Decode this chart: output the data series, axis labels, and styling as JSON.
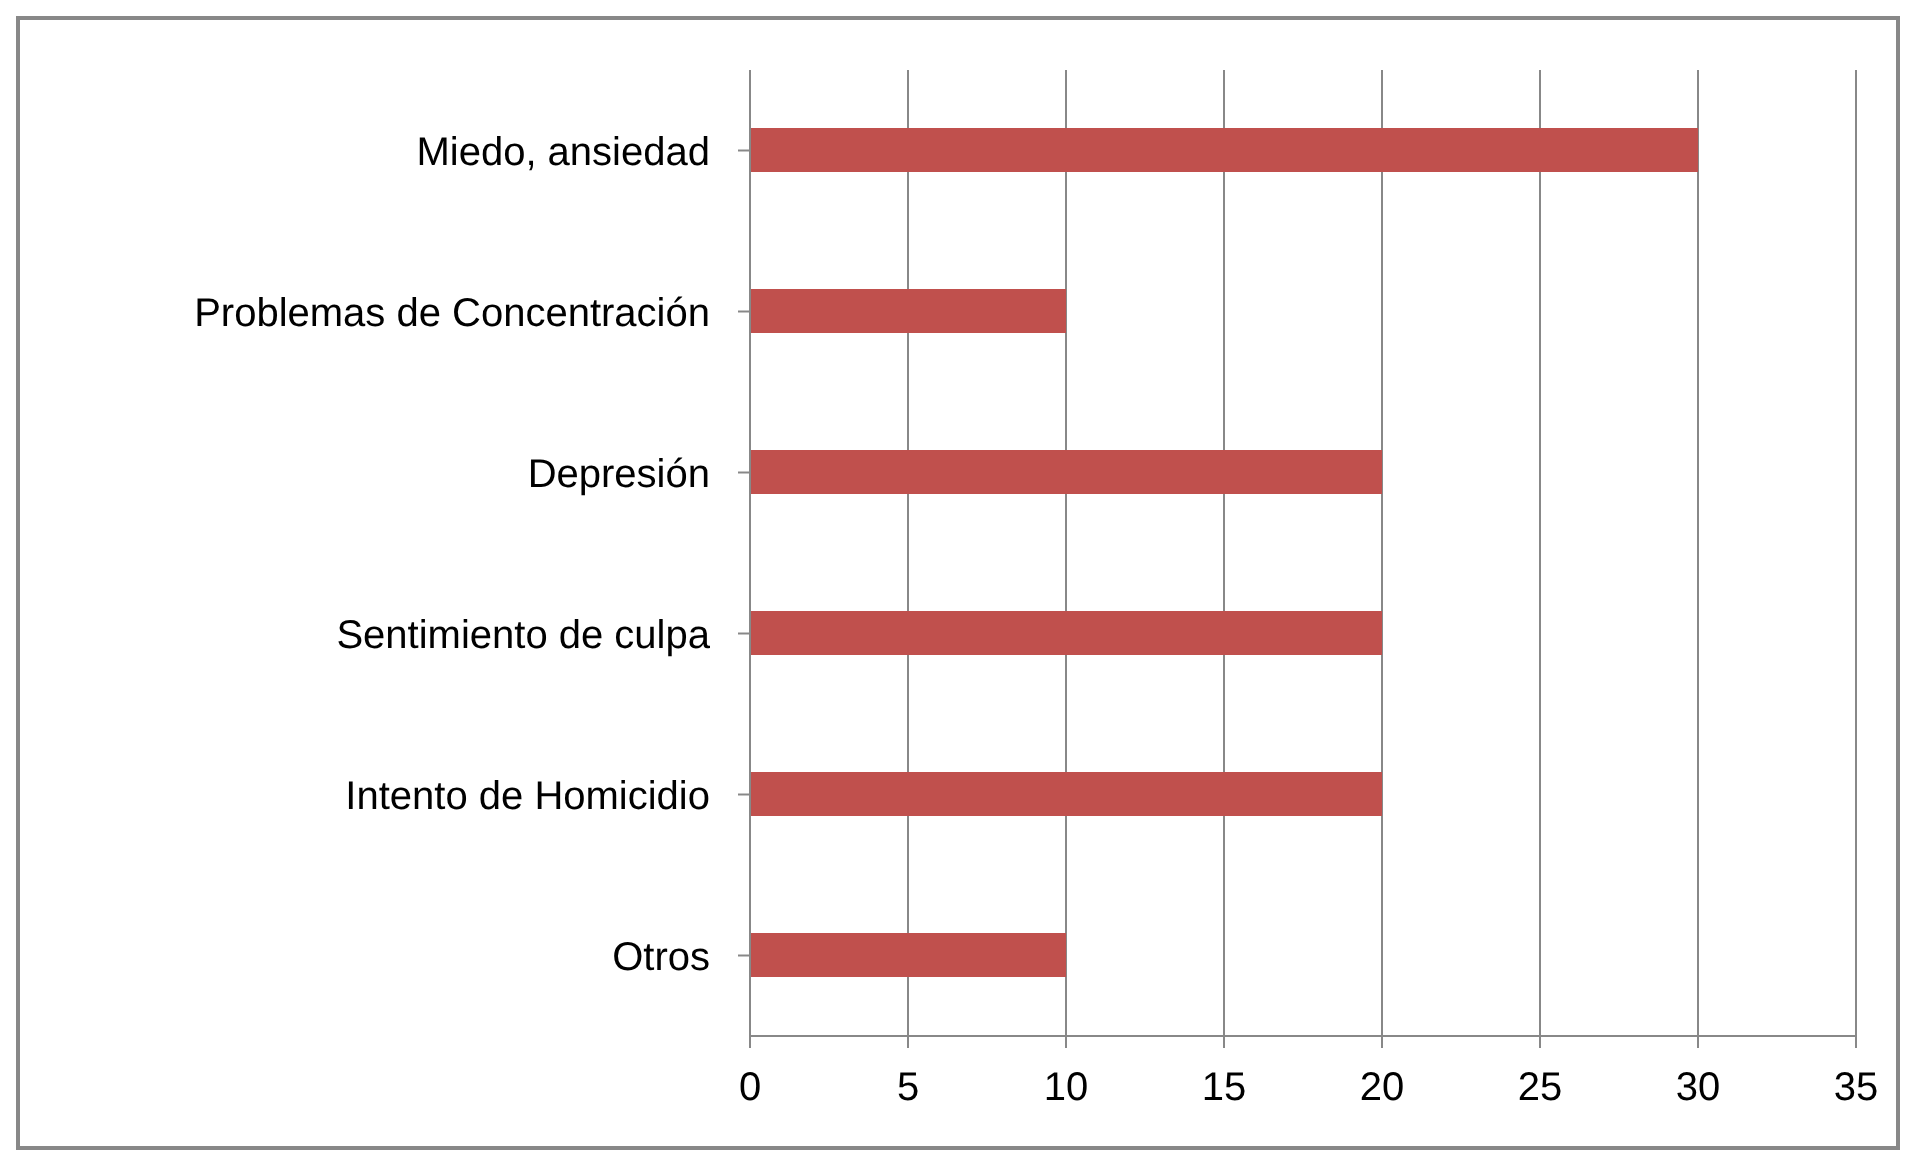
{
  "chart_data": {
    "type": "bar",
    "orientation": "horizontal",
    "categories": [
      "Miedo, ansiedad",
      "Problemas de Concentración",
      "Depresión",
      "Sentimiento de culpa",
      "Intento de Homicidio",
      "Otros"
    ],
    "values": [
      30,
      10,
      20,
      20,
      20,
      10
    ],
    "color": "#c0504d",
    "xlim": [
      0,
      35
    ],
    "xticks": [
      0,
      5,
      10,
      15,
      20,
      25,
      30,
      35
    ],
    "grid": "x"
  }
}
